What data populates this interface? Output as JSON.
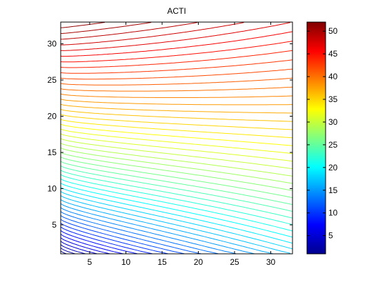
{
  "chart_data": {
    "type": "contour",
    "title": "ACTI",
    "xlabel": "",
    "ylabel": "",
    "x_range": [
      1,
      33
    ],
    "y_range": [
      1,
      33
    ],
    "x_ticks": [
      5,
      10,
      15,
      20,
      25,
      30
    ],
    "y_ticks": [
      5,
      10,
      15,
      20,
      25,
      30
    ],
    "z_range": [
      1,
      52
    ],
    "contour_step": 1,
    "colorbar": {
      "colormap": "jet",
      "range": [
        1,
        52
      ],
      "ticks": [
        5,
        10,
        15,
        20,
        25,
        30,
        35,
        40,
        45,
        50
      ]
    },
    "grid": false,
    "surface_model": {
      "description_values": "z is low near (1,1) and rises toward the top edge",
      "z_at_origin": 1,
      "z_at_top_left": 52,
      "z_at_bottom_right": 17
    }
  }
}
